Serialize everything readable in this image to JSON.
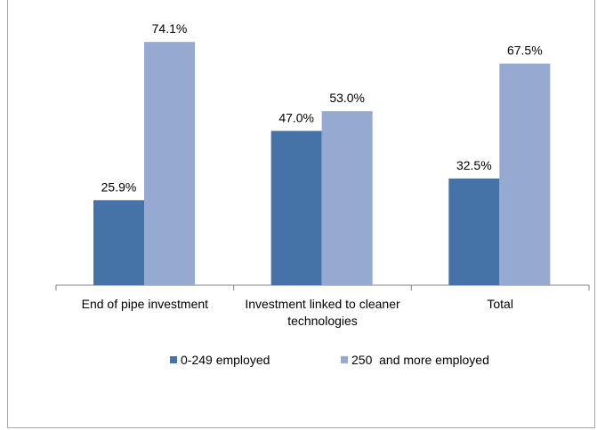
{
  "chart_data": {
    "type": "bar",
    "categories": [
      [
        "End of pipe investment"
      ],
      [
        "Investment linked to cleaner",
        "technologies"
      ],
      [
        "Total"
      ]
    ],
    "series": [
      {
        "name": "0-249 employed",
        "values": [
          25.9,
          47.0,
          32.5
        ],
        "labels": [
          "25.9%",
          "47.0%",
          "32.5%"
        ],
        "color": "#4572a7"
      },
      {
        "name": "250  and more employed",
        "values": [
          74.1,
          53.0,
          67.5
        ],
        "labels": [
          "74.1%",
          "53.0%",
          "67.5%"
        ],
        "color": "#95a9d1"
      }
    ],
    "ylim": [
      0,
      80
    ],
    "grid": false,
    "legend_position": "bottom",
    "axis_color": "#808080"
  }
}
